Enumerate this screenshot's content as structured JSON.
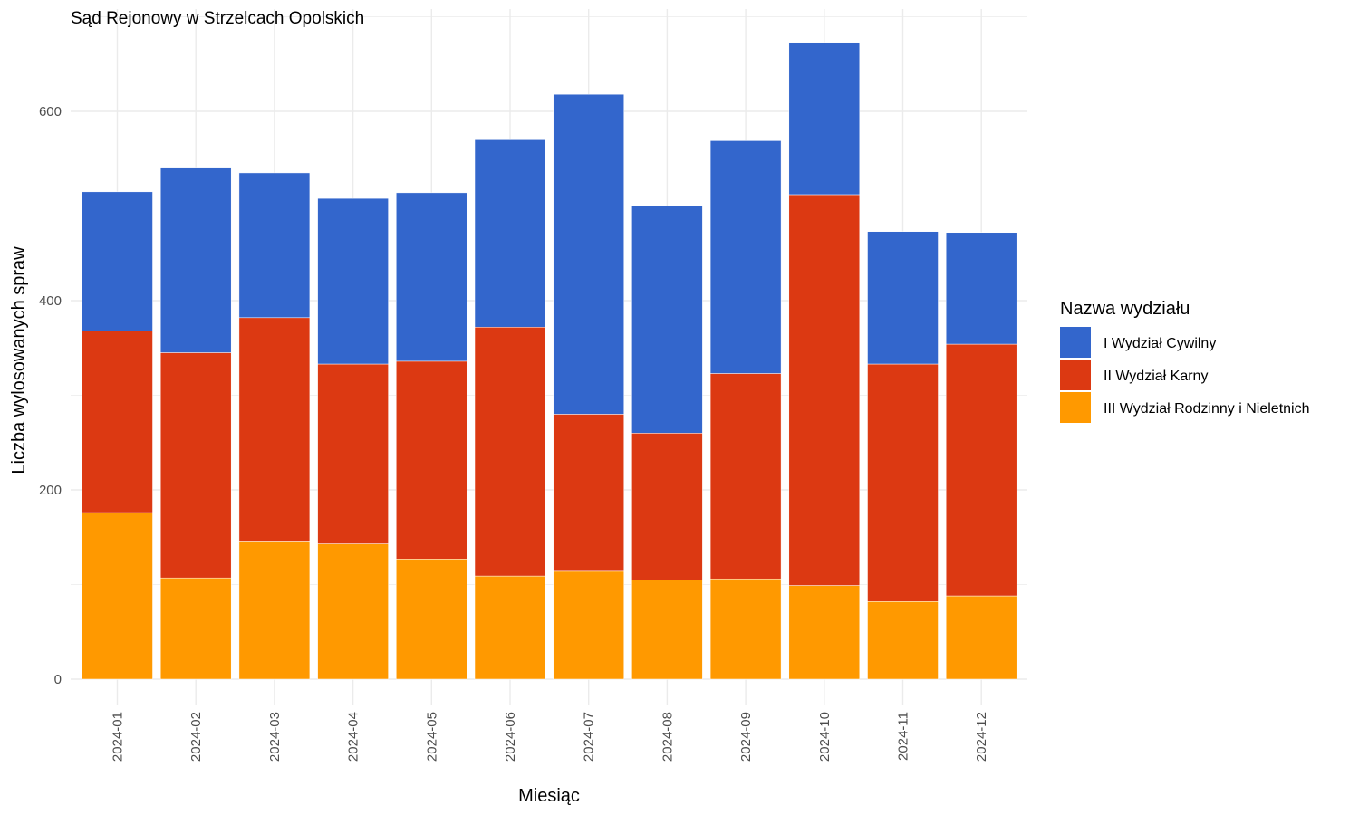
{
  "chart_data": {
    "type": "bar",
    "stacked": true,
    "title": "Sąd Rejonowy w Strzelcach Opolskich",
    "xlabel": "Miesiąc",
    "ylabel": "Liczba wylosowanych spraw",
    "ylim": [
      0,
      700
    ],
    "yticks": [
      0,
      200,
      400,
      600
    ],
    "grid": true,
    "legend_title": "Nazwa wydziału",
    "legend_position": "right",
    "categories": [
      "2024-01",
      "2024-02",
      "2024-03",
      "2024-04",
      "2024-05",
      "2024-06",
      "2024-07",
      "2024-08",
      "2024-09",
      "2024-10",
      "2024-11",
      "2024-12"
    ],
    "series": [
      {
        "name": "III Wydział Rodzinny i Nieletnich",
        "color": "#FF9900",
        "values": [
          176,
          107,
          146,
          143,
          127,
          109,
          114,
          105,
          106,
          99,
          82,
          88
        ]
      },
      {
        "name": "II Wydział Karny",
        "color": "#DC3912",
        "values": [
          192,
          238,
          236,
          190,
          209,
          263,
          166,
          155,
          217,
          413,
          251,
          266
        ]
      },
      {
        "name": "I Wydział Cywilny",
        "color": "#3366CC",
        "values": [
          147,
          196,
          153,
          175,
          178,
          198,
          338,
          240,
          246,
          161,
          140,
          118
        ]
      }
    ],
    "legend_order": [
      "I Wydział Cywilny",
      "II Wydział Karny",
      "III Wydział Rodzinny i Nieletnich"
    ]
  }
}
